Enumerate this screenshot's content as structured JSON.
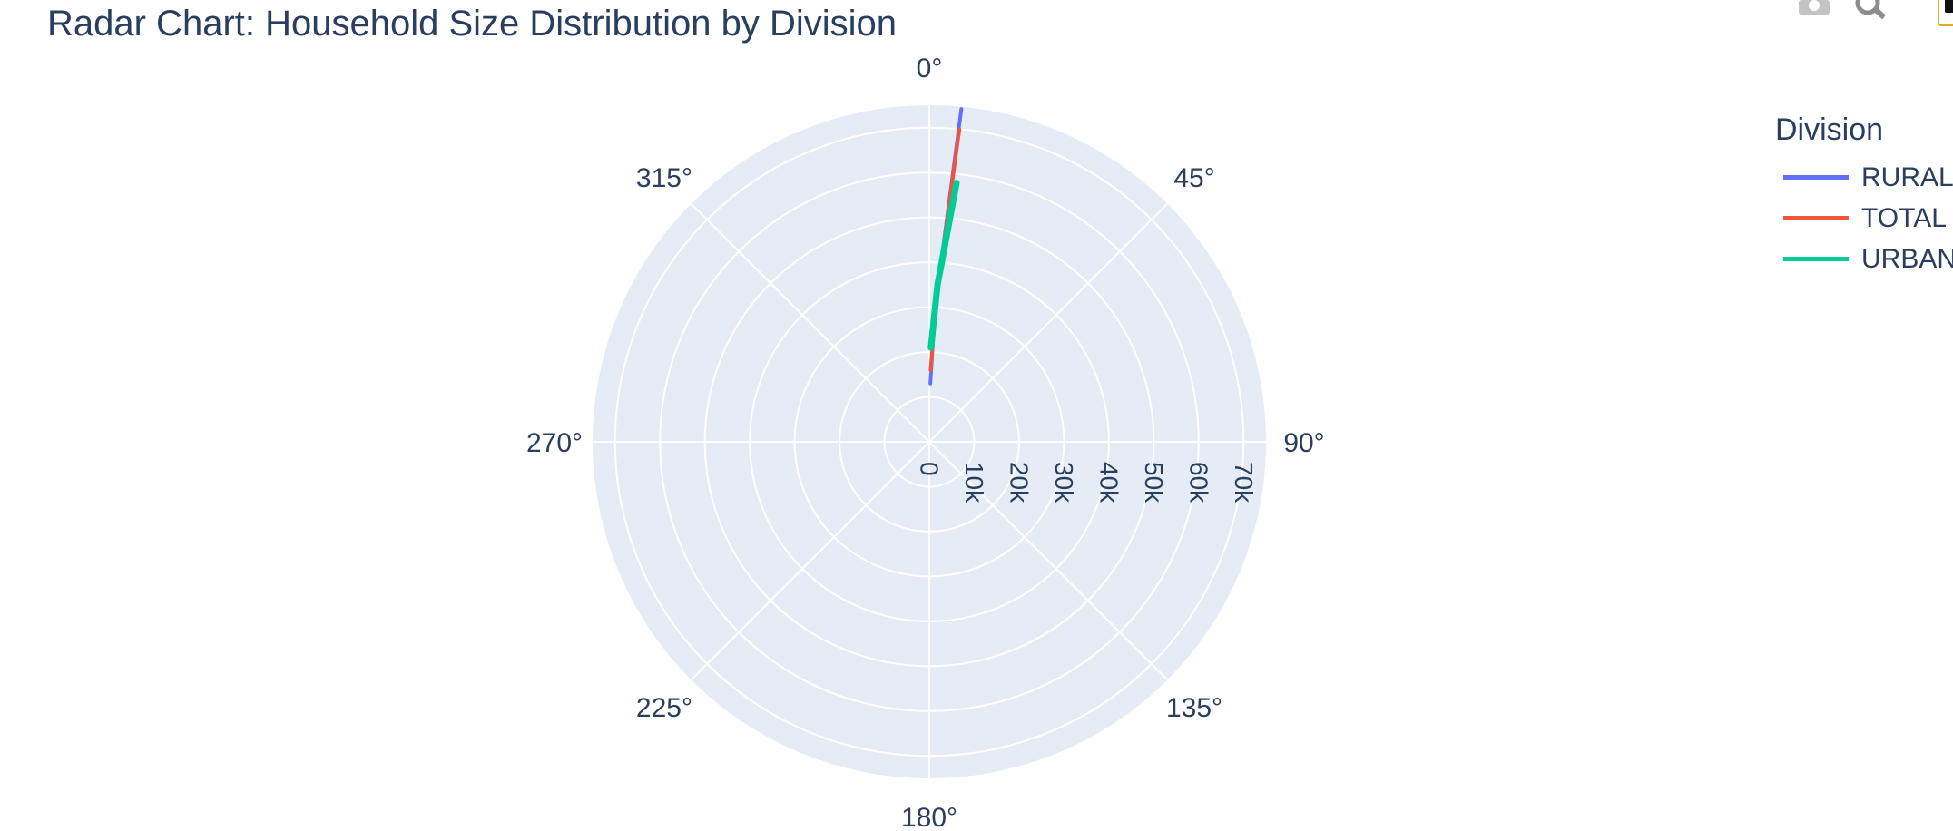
{
  "title": "Radar Chart: Household Size Distribution by Division",
  "modebar": {
    "icons": [
      "camera-icon",
      "zoom-icon",
      "plotly-logo-icon"
    ]
  },
  "chart_data": {
    "type": "line",
    "subtype": "polar",
    "title": "Radar Chart: Household Size Distribution by Division",
    "angular_axis": {
      "tick_labels": [
        "0°",
        "45°",
        "90°",
        "135°",
        "180°",
        "225°",
        "270°",
        "315°"
      ],
      "ticks_deg": [
        0,
        45,
        90,
        135,
        180,
        225,
        270,
        315
      ],
      "direction": "clockwise",
      "rotation": "0° at top"
    },
    "radial_axis": {
      "range": [
        0,
        75000
      ],
      "tick_values": [
        0,
        10000,
        20000,
        30000,
        40000,
        50000,
        60000,
        70000
      ],
      "tick_labels": [
        "0",
        "10k",
        "20k",
        "30k",
        "40k",
        "50k",
        "60k",
        "70k"
      ],
      "angle_deg": 90
    },
    "grid": true,
    "legend": {
      "title": "Division",
      "placement": "right"
    },
    "series": [
      {
        "name": "RURAL",
        "color": "#636efa",
        "points": [
          {
            "theta_deg": 1,
            "r": 13000
          },
          {
            "theta_deg": 2.5,
            "r": 30000
          },
          {
            "theta_deg": 5.5,
            "r": 74500
          }
        ]
      },
      {
        "name": "TOTAL",
        "color": "#ef553b",
        "points": [
          {
            "theta_deg": 1,
            "r": 16000
          },
          {
            "theta_deg": 3,
            "r": 33000
          },
          {
            "theta_deg": 5.5,
            "r": 70000
          }
        ]
      },
      {
        "name": "URBAN",
        "color": "#00cc96",
        "points": [
          {
            "theta_deg": 1,
            "r": 21000
          },
          {
            "theta_deg": 3,
            "r": 35000
          },
          {
            "theta_deg": 6,
            "r": 58000
          }
        ]
      }
    ]
  }
}
